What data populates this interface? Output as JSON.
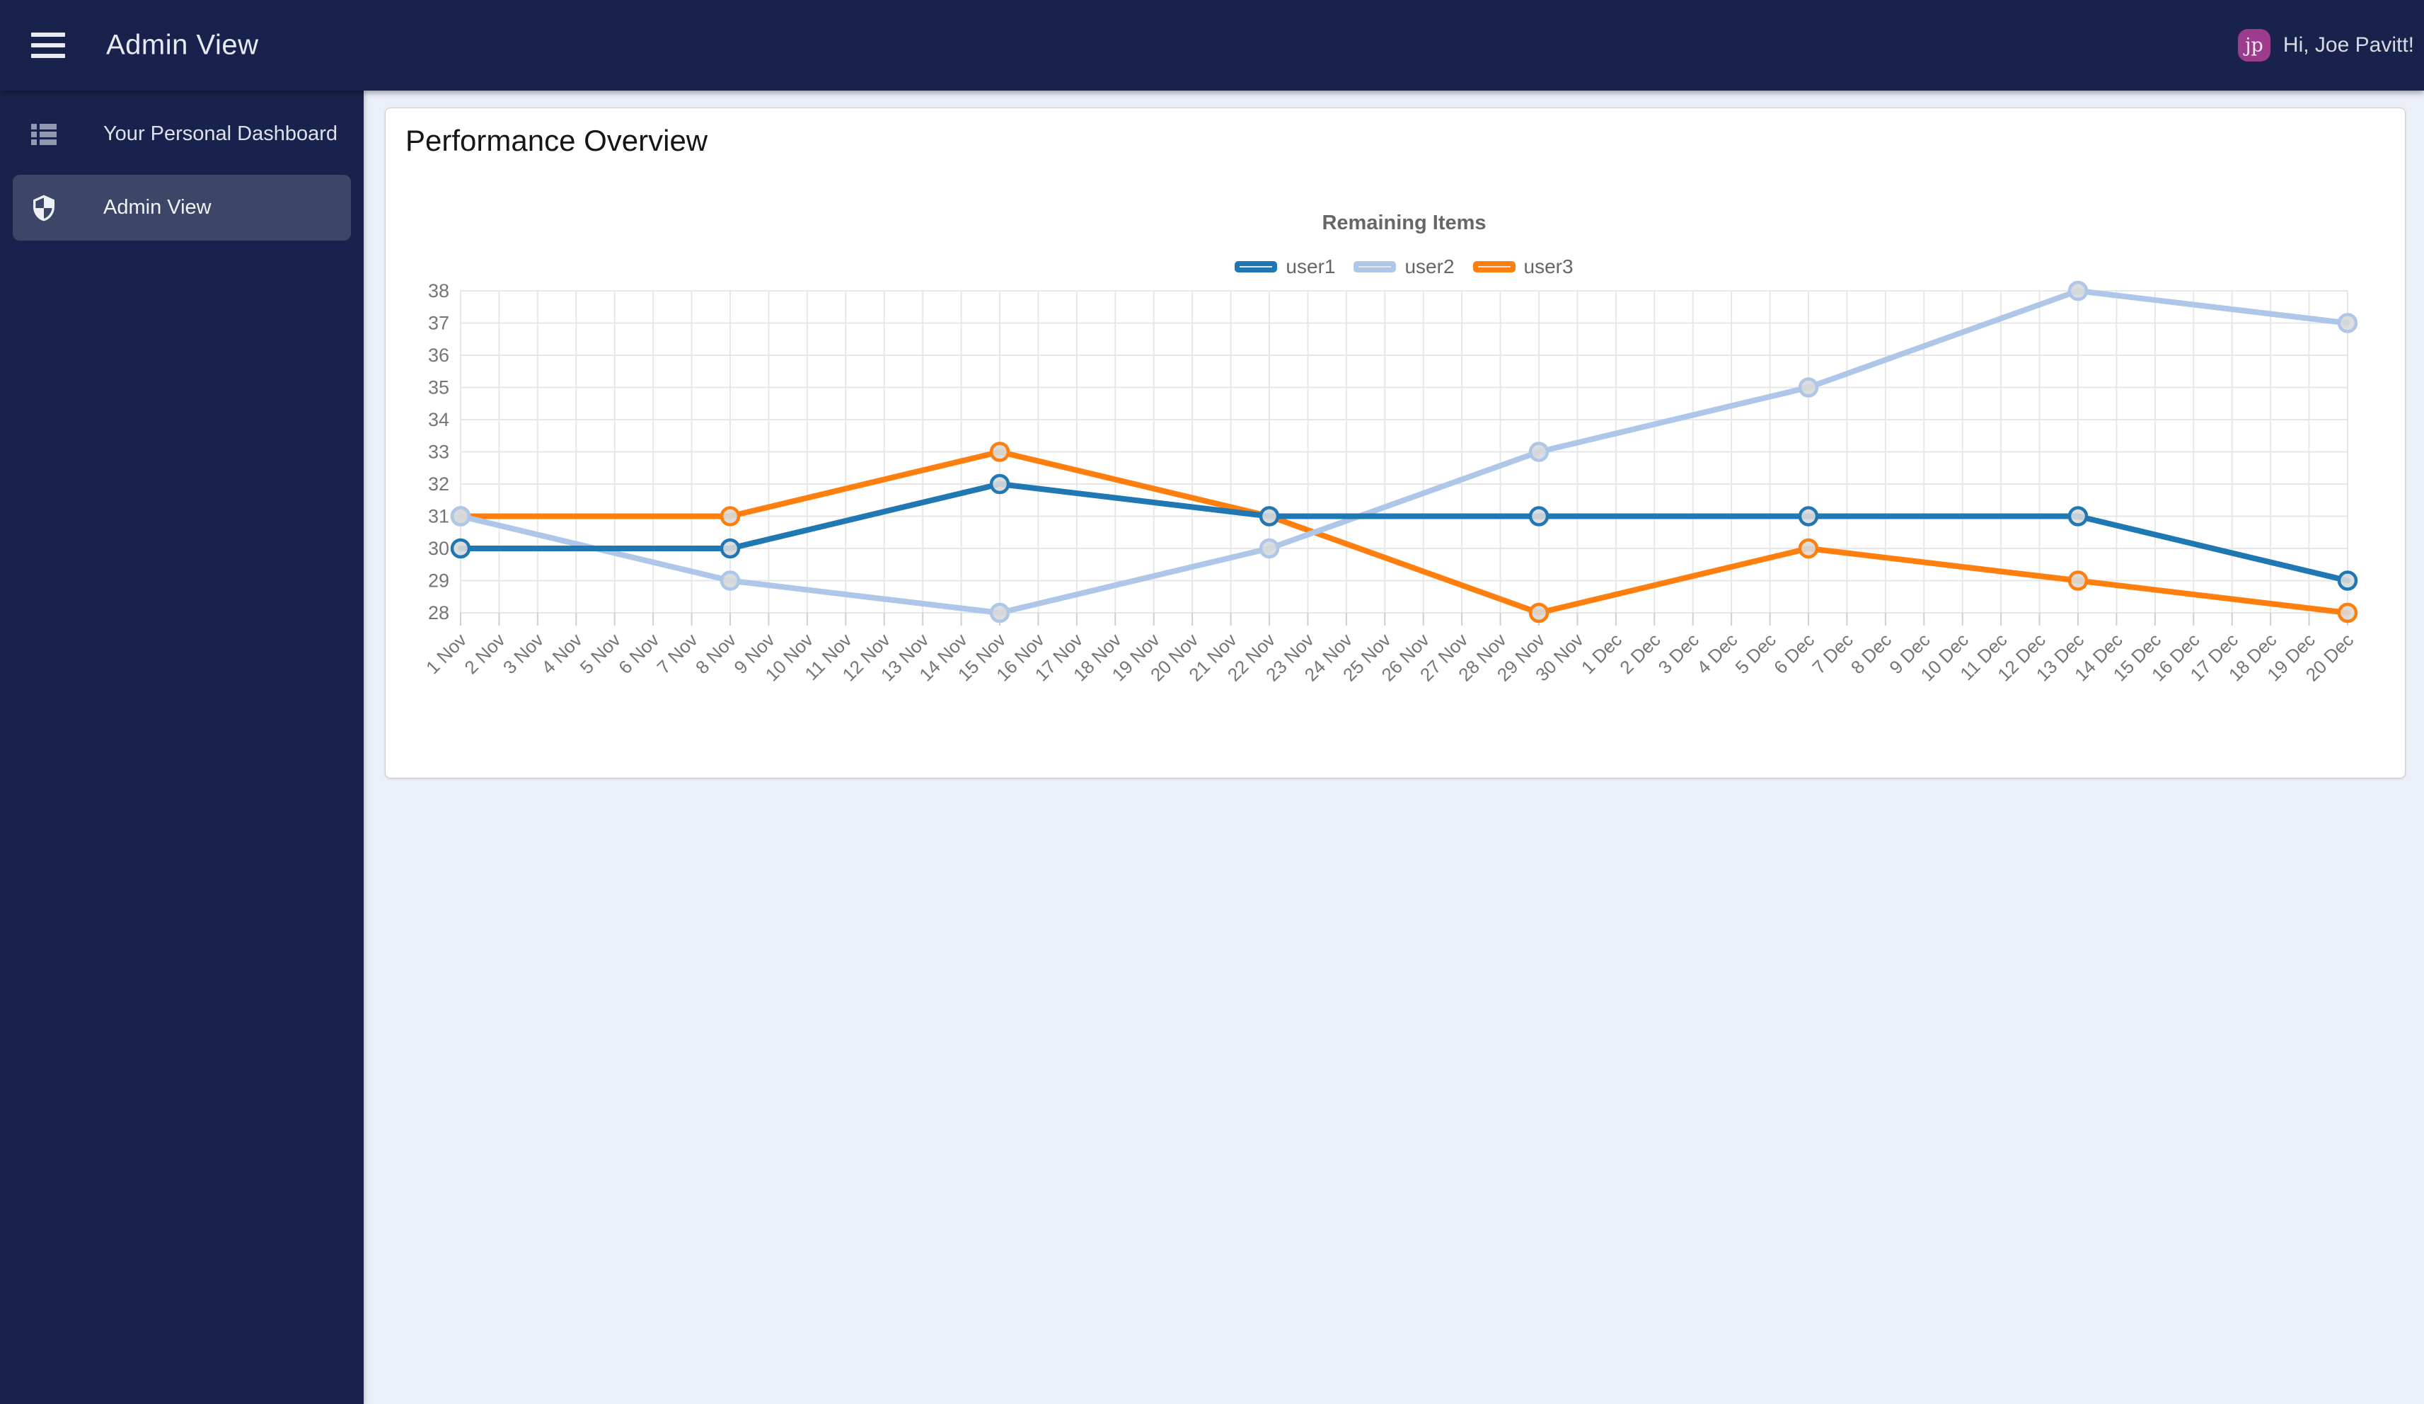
{
  "header": {
    "title": "Admin View",
    "greeting": "Hi, Joe Pavitt!",
    "user_initials": "jp"
  },
  "sidebar": {
    "items": [
      {
        "label": "Your Personal Dashboard",
        "icon": "dashboard-list-icon",
        "active": false
      },
      {
        "label": "Admin View",
        "icon": "shield-icon",
        "active": true
      }
    ]
  },
  "main": {
    "card_title": "Performance Overview"
  },
  "chart_data": {
    "type": "line",
    "title": "Remaining Items",
    "legend_position": "top",
    "grid": true,
    "xlabel": "",
    "ylabel": "",
    "ylim": [
      28,
      38
    ],
    "y_ticks": [
      38,
      37,
      36,
      35,
      34,
      33,
      32,
      31,
      30,
      29,
      28
    ],
    "x_labels": [
      "1 Nov",
      "2 Nov",
      "3 Nov",
      "4 Nov",
      "5 Nov",
      "6 Nov",
      "7 Nov",
      "8 Nov",
      "9 Nov",
      "10 Nov",
      "11 Nov",
      "12 Nov",
      "13 Nov",
      "14 Nov",
      "15 Nov",
      "16 Nov",
      "17 Nov",
      "18 Nov",
      "19 Nov",
      "20 Nov",
      "21 Nov",
      "22 Nov",
      "23 Nov",
      "24 Nov",
      "25 Nov",
      "26 Nov",
      "27 Nov",
      "28 Nov",
      "29 Nov",
      "30 Nov",
      "1 Dec",
      "2 Dec",
      "3 Dec",
      "4 Dec",
      "5 Dec",
      "6 Dec",
      "7 Dec",
      "8 Dec",
      "9 Dec",
      "10 Dec",
      "11 Dec",
      "12 Dec",
      "13 Dec",
      "14 Dec",
      "15 Dec",
      "16 Dec",
      "17 Dec",
      "18 Dec",
      "19 Dec",
      "20 Dec"
    ],
    "data_point_indices": [
      0,
      7,
      14,
      21,
      28,
      35,
      42,
      49
    ],
    "data_point_labels": [
      "1 Nov",
      "8 Nov",
      "15 Nov",
      "22 Nov",
      "29 Nov",
      "6 Dec",
      "13 Dec",
      "20 Dec"
    ],
    "series": [
      {
        "name": "user1",
        "color": "#1f77b4",
        "values": [
          30,
          30,
          32,
          31,
          31,
          31,
          31,
          29
        ]
      },
      {
        "name": "user2",
        "color": "#aec7e8",
        "values": [
          31,
          29,
          28,
          30,
          33,
          35,
          38,
          37
        ]
      },
      {
        "name": "user3",
        "color": "#ff7f0e",
        "values": [
          31,
          31,
          33,
          31,
          28,
          30,
          29,
          28
        ]
      }
    ],
    "point_fill": "#d9d9d9",
    "legend_swatch_fill": "#e4e4e4",
    "grid_color": "#e7e7e7",
    "tick_color": "#cfcfcf",
    "axis_text_color": "#757575"
  },
  "colors": {
    "header_bg": "#18224c",
    "sidebar_bg": "#18224c",
    "active_bg": "#3c4667",
    "main_bg": "#ebeff8",
    "card_bg": "#ffffff",
    "avatar_bg": "#9d3c8e"
  }
}
